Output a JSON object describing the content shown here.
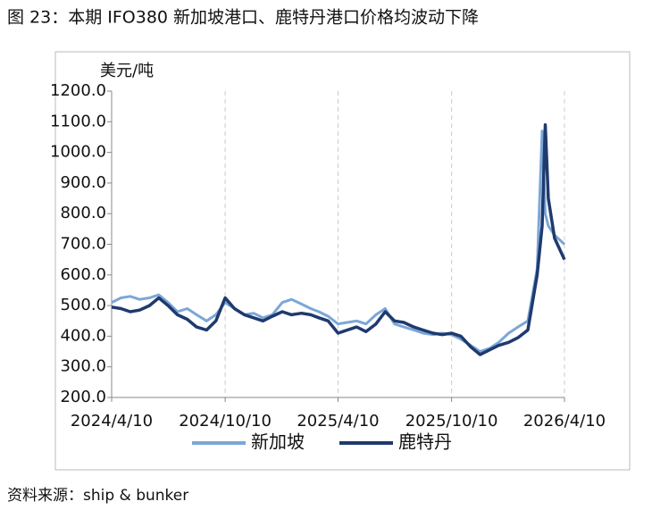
{
  "chart_data": {
    "type": "line",
    "title": "图 23：本期 IFO380 新加坡港口、鹿特丹港口价格均波动下降",
    "y_label": "美元/吨",
    "source": "资料来源：ship & bunker",
    "x": [
      "2024/4/10",
      "2024/4/25",
      "2024/5/10",
      "2024/5/25",
      "2024/6/10",
      "2024/6/25",
      "2024/7/10",
      "2024/7/25",
      "2024/8/10",
      "2024/8/25",
      "2024/9/10",
      "2024/9/25",
      "2024/10/10",
      "2024/10/25",
      "2024/11/10",
      "2024/11/25",
      "2024/12/10",
      "2024/12/25",
      "2025/1/10",
      "2025/1/25",
      "2025/2/10",
      "2025/2/25",
      "2025/3/10",
      "2025/3/25",
      "2025/4/10",
      "2025/4/25",
      "2025/5/10",
      "2025/5/25",
      "2025/6/10",
      "2025/6/25",
      "2025/7/10",
      "2025/7/25",
      "2025/8/10",
      "2025/8/25",
      "2025/9/10",
      "2025/9/25",
      "2025/10/10",
      "2025/10/25",
      "2025/11/10",
      "2025/11/25",
      "2025/12/10",
      "2025/12/25",
      "2026/1/10",
      "2026/1/25",
      "2026/2/10",
      "2026/2/25",
      "2026/3/5",
      "2026/3/10",
      "2026/3/15",
      "2026/3/25",
      "2026/4/10"
    ],
    "series": [
      {
        "name": "新加坡",
        "color": "#7ba7d7",
        "values": [
          510,
          525,
          530,
          520,
          525,
          535,
          510,
          480,
          490,
          470,
          450,
          470,
          510,
          490,
          470,
          475,
          460,
          470,
          510,
          520,
          505,
          490,
          480,
          465,
          440,
          445,
          450,
          440,
          470,
          490,
          440,
          430,
          420,
          410,
          405,
          410,
          405,
          390,
          370,
          350,
          360,
          380,
          410,
          430,
          450,
          620,
          1070,
          800,
          760,
          730,
          700
        ]
      },
      {
        "name": "鹿特丹",
        "color": "#1f3a6e",
        "values": [
          495,
          490,
          480,
          485,
          500,
          525,
          500,
          470,
          455,
          430,
          420,
          450,
          525,
          490,
          470,
          460,
          450,
          465,
          480,
          470,
          475,
          470,
          460,
          450,
          410,
          420,
          430,
          415,
          440,
          480,
          450,
          445,
          430,
          420,
          410,
          405,
          410,
          400,
          365,
          340,
          355,
          370,
          380,
          395,
          420,
          600,
          760,
          1090,
          850,
          720,
          650
        ]
      }
    ],
    "xlim": [
      "2024/4/10",
      "2026/4/10"
    ],
    "xticks": [
      "2024/4/10",
      "2024/10/10",
      "2025/4/10",
      "2025/10/10",
      "2026/4/10"
    ],
    "ylim": [
      200,
      1200
    ],
    "yticks": [
      {
        "value": 200,
        "label": "200.0"
      },
      {
        "value": 300,
        "label": "300.0"
      },
      {
        "value": 400,
        "label": "400.0"
      },
      {
        "value": 500,
        "label": "500.0"
      },
      {
        "value": 600,
        "label": "600.0"
      },
      {
        "value": 700,
        "label": "700.0"
      },
      {
        "value": 800,
        "label": "800.0"
      },
      {
        "value": 900,
        "label": "900.0"
      },
      {
        "value": 1000,
        "label": "1000.0"
      },
      {
        "value": 1100,
        "label": "1100.0"
      },
      {
        "value": 1200,
        "label": "1200.0"
      }
    ],
    "grid": true
  }
}
